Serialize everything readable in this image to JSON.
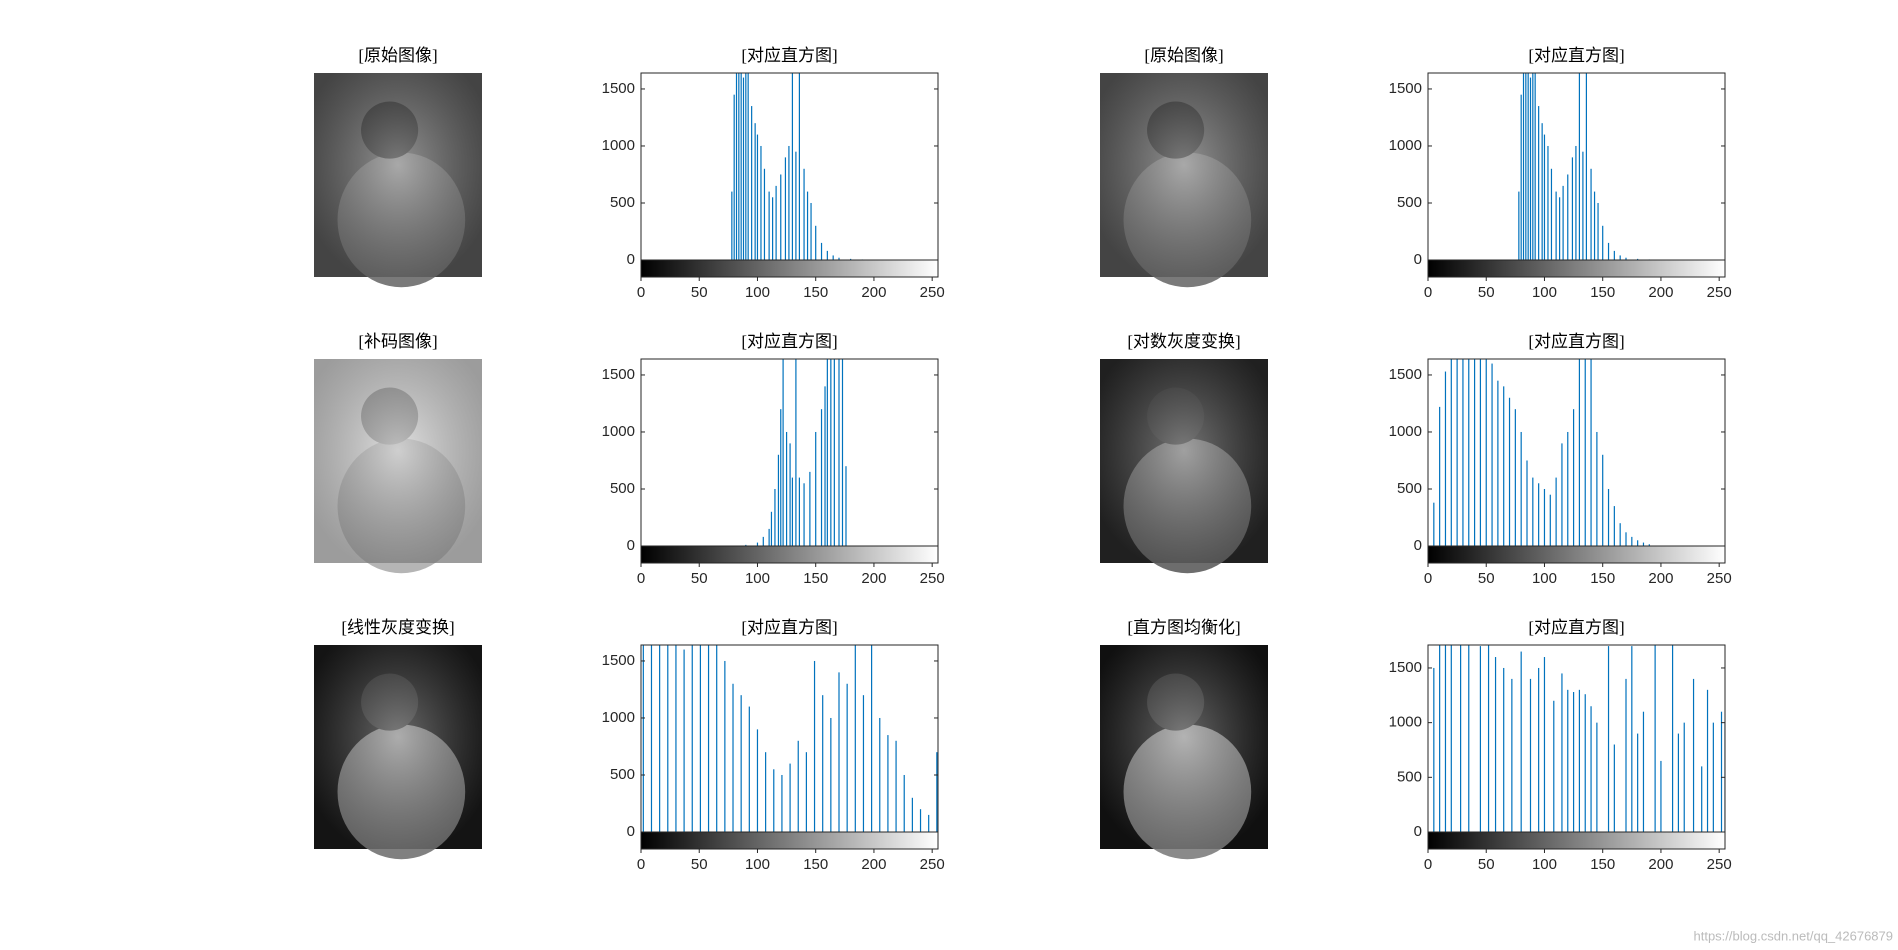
{
  "images": [
    {
      "title": "[原始图像]"
    },
    {
      "title": "[原始图像]"
    },
    {
      "title": "[补码图像]"
    },
    {
      "title": "[对数灰度变换]"
    },
    {
      "title": "[线性灰度变换]"
    },
    {
      "title": "[直方图均衡化]"
    }
  ],
  "chart_data": [
    {
      "type": "bar",
      "title": "[对应直方图]",
      "color": "#0072bd",
      "xlim": [
        0,
        255
      ],
      "ylim": [
        0,
        1640
      ],
      "xticks": [
        0,
        50,
        100,
        150,
        200,
        250
      ],
      "yticks": [
        0,
        500,
        1000,
        1500
      ],
      "x": [
        78,
        80,
        82,
        84,
        86,
        88,
        90,
        92,
        95,
        98,
        100,
        103,
        106,
        110,
        113,
        116,
        120,
        124,
        127,
        130,
        133,
        136,
        140,
        143,
        146,
        150,
        155,
        160,
        165,
        170,
        180,
        190
      ],
      "values": [
        600,
        1450,
        1700,
        1700,
        1700,
        1600,
        1700,
        1700,
        1350,
        1200,
        1100,
        1000,
        800,
        600,
        550,
        650,
        750,
        900,
        1000,
        1700,
        950,
        1700,
        800,
        600,
        500,
        300,
        150,
        80,
        40,
        20,
        10,
        5
      ]
    },
    {
      "type": "bar",
      "title": "[对应直方图]",
      "color": "#0072bd",
      "xlim": [
        0,
        255
      ],
      "ylim": [
        0,
        1640
      ],
      "xticks": [
        0,
        50,
        100,
        150,
        200,
        250
      ],
      "yticks": [
        0,
        500,
        1000,
        1500
      ],
      "x": [
        78,
        80,
        82,
        84,
        86,
        88,
        90,
        92,
        95,
        98,
        100,
        103,
        106,
        110,
        113,
        116,
        120,
        124,
        127,
        130,
        133,
        136,
        140,
        143,
        146,
        150,
        155,
        160,
        165,
        170,
        180,
        190
      ],
      "values": [
        600,
        1450,
        1700,
        1700,
        1700,
        1600,
        1700,
        1700,
        1350,
        1200,
        1100,
        1000,
        800,
        600,
        550,
        650,
        750,
        900,
        1000,
        1700,
        950,
        1700,
        800,
        600,
        500,
        300,
        150,
        80,
        40,
        20,
        10,
        5
      ]
    },
    {
      "type": "bar",
      "title": "[对应直方图]",
      "color": "#0072bd",
      "xlim": [
        0,
        255
      ],
      "ylim": [
        0,
        1640
      ],
      "xticks": [
        0,
        50,
        100,
        150,
        200,
        250
      ],
      "yticks": [
        0,
        500,
        1000,
        1500
      ],
      "x": [
        90,
        100,
        105,
        110,
        112,
        115,
        118,
        120,
        122,
        125,
        128,
        130,
        133,
        136,
        140,
        145,
        150,
        155,
        158,
        160,
        163,
        166,
        170,
        173,
        176
      ],
      "values": [
        10,
        30,
        80,
        150,
        300,
        500,
        800,
        1200,
        1700,
        1000,
        900,
        600,
        1700,
        600,
        550,
        650,
        1000,
        1200,
        1400,
        1700,
        1700,
        1700,
        1700,
        1700,
        700
      ]
    },
    {
      "type": "bar",
      "title": "[对应直方图]",
      "color": "#0072bd",
      "xlim": [
        0,
        255
      ],
      "ylim": [
        0,
        1640
      ],
      "xticks": [
        0,
        50,
        100,
        150,
        200,
        250
      ],
      "yticks": [
        0,
        500,
        1000,
        1500
      ],
      "x": [
        5,
        10,
        15,
        20,
        25,
        30,
        35,
        40,
        45,
        50,
        55,
        60,
        65,
        70,
        75,
        80,
        85,
        90,
        95,
        100,
        105,
        110,
        115,
        120,
        125,
        130,
        135,
        140,
        145,
        150,
        155,
        160,
        165,
        170,
        175,
        180,
        185,
        190
      ],
      "values": [
        380,
        1220,
        1530,
        1700,
        1700,
        1700,
        1700,
        1700,
        1700,
        1700,
        1600,
        1450,
        1400,
        1300,
        1200,
        1000,
        750,
        600,
        550,
        500,
        450,
        600,
        900,
        1000,
        1200,
        1700,
        1700,
        1700,
        1000,
        800,
        500,
        350,
        200,
        120,
        80,
        50,
        30,
        15
      ]
    },
    {
      "type": "bar",
      "title": "[对应直方图]",
      "color": "#0072bd",
      "xlim": [
        0,
        255
      ],
      "ylim": [
        0,
        1640
      ],
      "xticks": [
        0,
        50,
        100,
        150,
        200,
        250
      ],
      "yticks": [
        0,
        500,
        1000,
        1500
      ],
      "x": [
        2,
        9,
        16,
        23,
        30,
        37,
        44,
        51,
        58,
        65,
        72,
        79,
        86,
        93,
        100,
        107,
        114,
        121,
        128,
        135,
        142,
        149,
        156,
        163,
        170,
        177,
        184,
        191,
        198,
        205,
        212,
        219,
        226,
        233,
        240,
        247,
        254
      ],
      "values": [
        1700,
        1700,
        1700,
        1700,
        1700,
        1600,
        1700,
        1700,
        1700,
        1700,
        1500,
        1300,
        1200,
        1100,
        900,
        700,
        550,
        500,
        600,
        800,
        700,
        1500,
        1200,
        1000,
        1400,
        1300,
        1700,
        1200,
        1700,
        1000,
        850,
        800,
        500,
        300,
        200,
        150,
        700
      ]
    },
    {
      "type": "bar",
      "title": "[对应直方图]",
      "color": "#0072bd",
      "xlim": [
        0,
        255
      ],
      "ylim": [
        0,
        1710
      ],
      "xticks": [
        0,
        50,
        100,
        150,
        200,
        250
      ],
      "yticks": [
        0,
        500,
        1000,
        1500
      ],
      "x": [
        5,
        10,
        15,
        20,
        28,
        35,
        45,
        52,
        58,
        65,
        72,
        80,
        88,
        95,
        100,
        108,
        115,
        120,
        125,
        130,
        135,
        140,
        145,
        155,
        160,
        170,
        175,
        180,
        185,
        195,
        200,
        210,
        215,
        220,
        228,
        235,
        240,
        245,
        252,
        255
      ],
      "values": [
        1500,
        1720,
        1720,
        1720,
        1720,
        1720,
        1700,
        1720,
        1600,
        1500,
        1400,
        1650,
        1400,
        1500,
        1600,
        1200,
        1450,
        1300,
        1280,
        1300,
        1260,
        1150,
        1000,
        1700,
        800,
        1400,
        1700,
        900,
        1100,
        1750,
        650,
        1750,
        900,
        1000,
        1400,
        600,
        1300,
        1000,
        1100,
        1000
      ]
    }
  ],
  "watermark": "https://blog.csdn.net/qq_42676879"
}
